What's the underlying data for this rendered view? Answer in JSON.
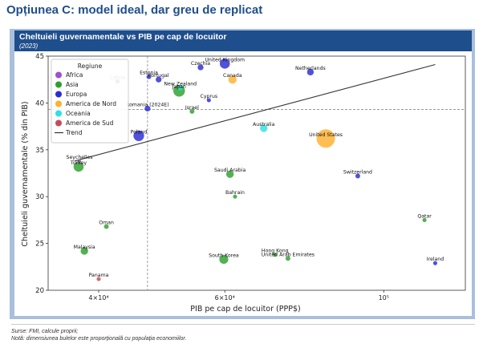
{
  "header": {
    "title": "Opțiunea C: model ideal, dar greu de replicat"
  },
  "panel": {
    "title": "Cheltuieli guvernamentale vs PIB pe cap de locuitor",
    "subtitle": "(2023)"
  },
  "footer": {
    "source": "Surse: FMI, calcule proprii;",
    "note": "Notă: dimensiunea bulelor este proporțională cu populația economiilor."
  },
  "chart_data": {
    "type": "scatter",
    "xscale": "log",
    "xlabel": "PIB pe cap de locuitor (PPP$)",
    "ylabel": "Cheltuieli guvernamentale (% din PIB)",
    "xlim": [
      34000,
      130000
    ],
    "ylim": [
      20,
      45
    ],
    "xticks": [
      {
        "value": 40000,
        "label": "4×10⁴"
      },
      {
        "value": 60000,
        "label": "6×10⁴"
      },
      {
        "value": 100000,
        "label": "10⁵"
      }
    ],
    "yticks": [
      20,
      25,
      30,
      35,
      40,
      45
    ],
    "reference_lines": {
      "x": 46800,
      "y": 39.3
    },
    "legend": {
      "title": "Regiune",
      "position": "top-left",
      "trend_label": "Trend",
      "regions": [
        {
          "name": "Africa",
          "color": "#a14fcf"
        },
        {
          "name": "Asia",
          "color": "#2ca02c"
        },
        {
          "name": "Europa",
          "color": "#2b2bd6"
        },
        {
          "name": "America de Nord",
          "color": "#ffb02e"
        },
        {
          "name": "Oceania",
          "color": "#2fe0e0"
        },
        {
          "name": "America de Sud",
          "color": "#c64a5a"
        }
      ]
    },
    "trend": {
      "x": [
        37000,
        118000
      ],
      "y": [
        33.8,
        44.1
      ]
    },
    "points": [
      {
        "label": "Estonia",
        "region": "Europa",
        "x": 47000,
        "y": 42.8,
        "size": 2
      },
      {
        "label": "Portugal",
        "region": "Europa",
        "x": 48500,
        "y": 42.5,
        "size": 3
      },
      {
        "label": "Latvia",
        "region": "Europa",
        "x": 42500,
        "y": 42.3,
        "size": 1.5
      },
      {
        "label": "Czechia",
        "region": "Europa",
        "x": 55500,
        "y": 43.8,
        "size": 3
      },
      {
        "label": "United Kingdom",
        "region": "Europa",
        "x": 60000,
        "y": 44.2,
        "size": 9
      },
      {
        "label": "Netherlands",
        "region": "Europa",
        "x": 79000,
        "y": 43.3,
        "size": 4
      },
      {
        "label": "Canada",
        "region": "America de Nord",
        "x": 61500,
        "y": 42.5,
        "size": 6
      },
      {
        "label": "New Zealand",
        "region": "Oceania",
        "x": 52000,
        "y": 41.6,
        "size": 2
      },
      {
        "label": "Japan",
        "region": "Asia",
        "x": 51800,
        "y": 41.3,
        "size": 12
      },
      {
        "label": "Cyprus",
        "region": "Europa",
        "x": 57000,
        "y": 40.3,
        "size": 1.5
      },
      {
        "label": "Romania (2024E)",
        "region": "Europa",
        "x": 46800,
        "y": 39.4,
        "size": 3
      },
      {
        "label": "Israel",
        "region": "Asia",
        "x": 54000,
        "y": 39.1,
        "size": 2
      },
      {
        "label": "Poland",
        "region": "Europa",
        "x": 45500,
        "y": 36.5,
        "size": 10
      },
      {
        "label": "Australia",
        "region": "Oceania",
        "x": 68000,
        "y": 37.3,
        "size": 5
      },
      {
        "label": "United States",
        "region": "America de Nord",
        "x": 83000,
        "y": 36.2,
        "size": 30
      },
      {
        "label": "Seychelles",
        "region": "Africa",
        "x": 37600,
        "y": 33.8,
        "size": 1
      },
      {
        "label": "Turkey",
        "region": "Asia",
        "x": 37500,
        "y": 33.2,
        "size": 9
      },
      {
        "label": "Saudi Arabia",
        "region": "Asia",
        "x": 61000,
        "y": 32.4,
        "size": 5
      },
      {
        "label": "Switzerland",
        "region": "Europa",
        "x": 92000,
        "y": 32.2,
        "size": 2
      },
      {
        "label": "Bahrain",
        "region": "Asia",
        "x": 62000,
        "y": 30.0,
        "size": 1.5
      },
      {
        "label": "Oman",
        "region": "Asia",
        "x": 41000,
        "y": 26.8,
        "size": 2
      },
      {
        "label": "Qatar",
        "region": "Asia",
        "x": 114000,
        "y": 27.5,
        "size": 1.5
      },
      {
        "label": "Malaysia",
        "region": "Asia",
        "x": 38200,
        "y": 24.2,
        "size": 5
      },
      {
        "label": "Hong Kong",
        "region": "Asia",
        "x": 70500,
        "y": 23.8,
        "size": 1.5
      },
      {
        "label": "United Arab Emirates",
        "region": "Asia",
        "x": 73500,
        "y": 23.4,
        "size": 2
      },
      {
        "label": "South Korea",
        "region": "Asia",
        "x": 59800,
        "y": 23.3,
        "size": 7
      },
      {
        "label": "Ireland",
        "region": "Europa",
        "x": 118000,
        "y": 22.9,
        "size": 1.5
      },
      {
        "label": "Panama",
        "region": "America de Sud",
        "x": 40000,
        "y": 21.2,
        "size": 1.5
      }
    ]
  }
}
